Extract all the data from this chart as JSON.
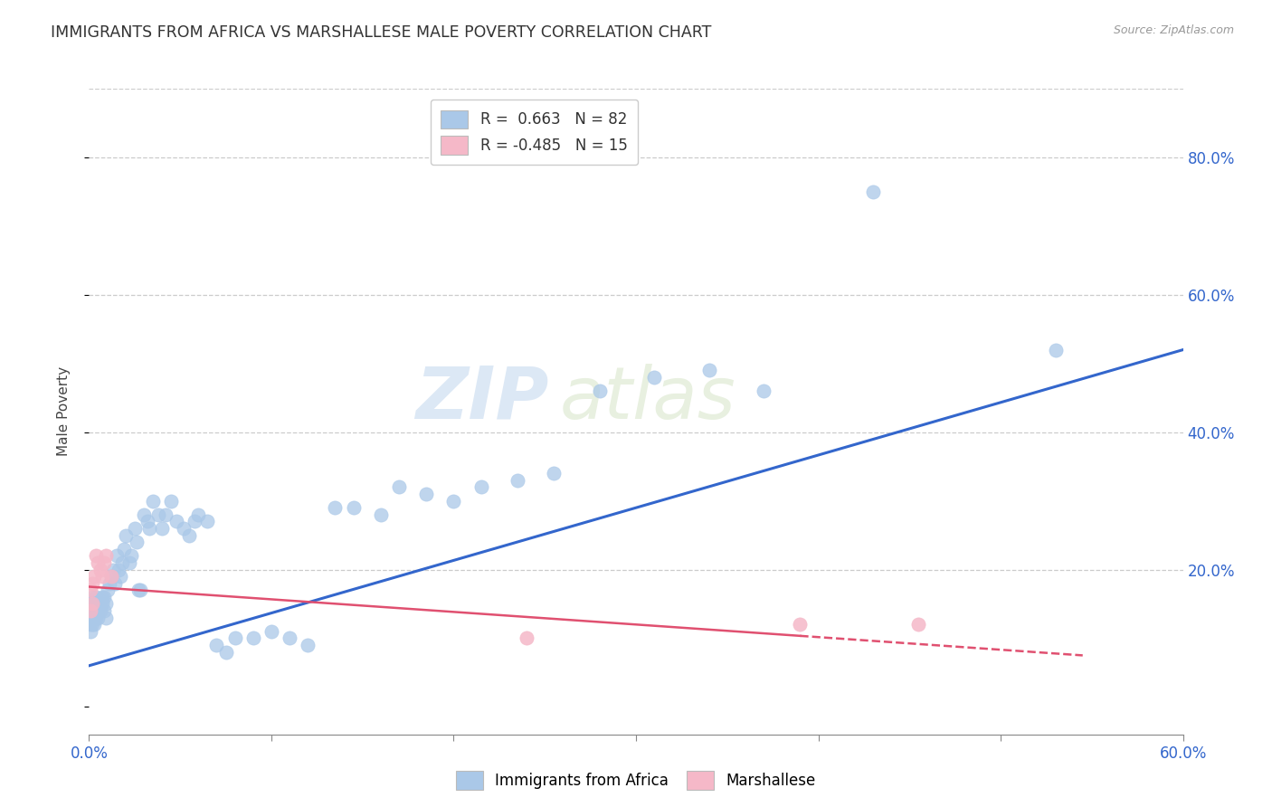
{
  "title": "IMMIGRANTS FROM AFRICA VS MARSHALLESE MALE POVERTY CORRELATION CHART",
  "source": "Source: ZipAtlas.com",
  "ylabel": "Male Poverty",
  "xlim": [
    0.0,
    0.6
  ],
  "ylim": [
    -0.04,
    0.9
  ],
  "legend1_label": "R =  0.663   N = 82",
  "legend2_label": "R = -0.485   N = 15",
  "legend1_color": "#aac8e8",
  "legend2_color": "#f5b8c8",
  "scatter1_color": "#aac8e8",
  "scatter2_color": "#f5b8c8",
  "line1_color": "#3366cc",
  "line2_color": "#e05070",
  "watermark": "ZIPatlas",
  "africa_x": [
    0.001,
    0.001,
    0.001,
    0.001,
    0.001,
    0.002,
    0.002,
    0.002,
    0.002,
    0.002,
    0.003,
    0.003,
    0.003,
    0.003,
    0.004,
    0.004,
    0.004,
    0.004,
    0.005,
    0.005,
    0.005,
    0.006,
    0.006,
    0.007,
    0.007,
    0.008,
    0.008,
    0.009,
    0.009,
    0.01,
    0.011,
    0.012,
    0.013,
    0.014,
    0.015,
    0.016,
    0.017,
    0.018,
    0.019,
    0.02,
    0.022,
    0.023,
    0.025,
    0.026,
    0.027,
    0.028,
    0.03,
    0.032,
    0.033,
    0.035,
    0.038,
    0.04,
    0.042,
    0.045,
    0.048,
    0.052,
    0.055,
    0.058,
    0.06,
    0.065,
    0.07,
    0.075,
    0.08,
    0.09,
    0.1,
    0.11,
    0.12,
    0.135,
    0.145,
    0.16,
    0.17,
    0.185,
    0.2,
    0.215,
    0.235,
    0.255,
    0.28,
    0.31,
    0.34,
    0.37,
    0.43,
    0.53
  ],
  "africa_y": [
    0.14,
    0.15,
    0.12,
    0.13,
    0.11,
    0.14,
    0.15,
    0.13,
    0.12,
    0.16,
    0.15,
    0.13,
    0.14,
    0.12,
    0.14,
    0.15,
    0.13,
    0.16,
    0.15,
    0.14,
    0.13,
    0.15,
    0.14,
    0.15,
    0.16,
    0.14,
    0.16,
    0.15,
    0.13,
    0.17,
    0.18,
    0.19,
    0.2,
    0.18,
    0.22,
    0.2,
    0.19,
    0.21,
    0.23,
    0.25,
    0.21,
    0.22,
    0.26,
    0.24,
    0.17,
    0.17,
    0.28,
    0.27,
    0.26,
    0.3,
    0.28,
    0.26,
    0.28,
    0.3,
    0.27,
    0.26,
    0.25,
    0.27,
    0.28,
    0.27,
    0.09,
    0.08,
    0.1,
    0.1,
    0.11,
    0.1,
    0.09,
    0.29,
    0.29,
    0.28,
    0.32,
    0.31,
    0.3,
    0.32,
    0.33,
    0.34,
    0.46,
    0.48,
    0.49,
    0.46,
    0.75,
    0.52
  ],
  "marshallese_x": [
    0.001,
    0.001,
    0.002,
    0.002,
    0.003,
    0.004,
    0.005,
    0.006,
    0.007,
    0.008,
    0.009,
    0.012,
    0.24,
    0.39,
    0.455
  ],
  "marshallese_y": [
    0.14,
    0.17,
    0.15,
    0.18,
    0.19,
    0.22,
    0.21,
    0.2,
    0.19,
    0.21,
    0.22,
    0.19,
    0.1,
    0.12,
    0.12
  ],
  "line1_x": [
    0.0,
    0.6
  ],
  "line1_y": [
    0.06,
    0.52
  ],
  "line2_x": [
    0.0,
    0.545
  ],
  "line2_y": [
    0.175,
    0.075
  ]
}
